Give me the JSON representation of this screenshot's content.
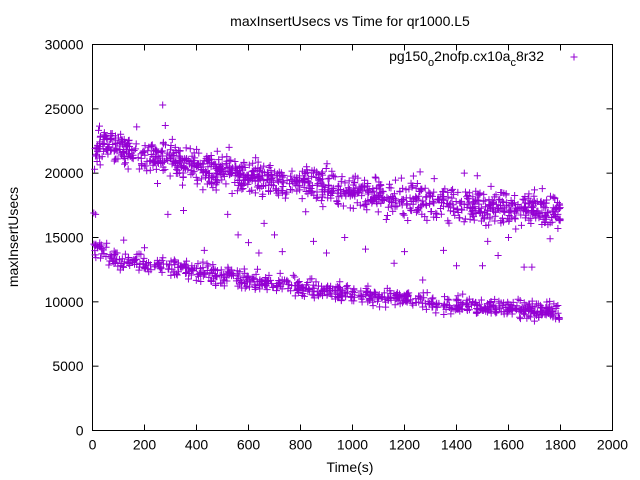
{
  "chart_data": {
    "type": "scatter",
    "title": "maxInsertUsecs vs Time for qr1000.L5",
    "xlabel": "Time(s)",
    "ylabel": "maxInsertUsecs",
    "xlim": [
      0,
      2000
    ],
    "ylim": [
      0,
      30000
    ],
    "x_ticks": [
      "0",
      "200",
      "400",
      "600",
      "800",
      "1000",
      "1200",
      "1400",
      "1600",
      "1800",
      "2000"
    ],
    "y_ticks": [
      "0",
      "5000",
      "10000",
      "15000",
      "20000",
      "25000",
      "30000"
    ],
    "grid": false,
    "legend_position": "top-right",
    "marker": "+",
    "color": "#9400d3",
    "series": [
      {
        "name": "pg150_o2nofp.cx10a_c8r32",
        "legend_main": "pg150",
        "legend_sub1": "o",
        "legend_mid": "2nofp.cx10a",
        "legend_sub2": "c",
        "legend_end": "8r32",
        "bands": [
          {
            "x": [
              5,
              40,
              100,
              200,
              300,
              400,
              500,
              600,
              700,
              800,
              900,
              1000,
              1100,
              1200,
              1300,
              1400,
              1500,
              1600,
              1700,
              1800
            ],
            "y": [
              14300,
              13800,
              13300,
              12900,
              12600,
              12300,
              12000,
              11700,
              11400,
              11100,
              10800,
              10600,
              10400,
              10200,
              10000,
              9800,
              9700,
              9600,
              9400,
              9100
            ]
          },
          {
            "x": [
              10,
              40,
              100,
              200,
              300,
              400,
              500,
              600,
              700,
              800,
              900,
              1000,
              1100,
              1200,
              1300,
              1400,
              1500,
              1600,
              1700,
              1800
            ],
            "y": [
              22000,
              22300,
              21800,
              21500,
              21000,
              20500,
              20200,
              19800,
              19500,
              19200,
              18900,
              18600,
              18300,
              18000,
              17800,
              17600,
              17400,
              17300,
              17200,
              17000
            ]
          }
        ],
        "outliers": [
          [
            5,
            16900
          ],
          [
            8,
            20300
          ],
          [
            12,
            16800
          ],
          [
            30,
            22800
          ],
          [
            170,
            23600
          ],
          [
            230,
            22200
          ],
          [
            250,
            19200
          ],
          [
            270,
            25300
          ],
          [
            280,
            23700
          ],
          [
            290,
            16800
          ],
          [
            350,
            17100
          ],
          [
            520,
            16800
          ],
          [
            560,
            15200
          ],
          [
            600,
            14600
          ],
          [
            660,
            16100
          ],
          [
            700,
            15200
          ],
          [
            730,
            13900
          ],
          [
            820,
            17000
          ],
          [
            850,
            14700
          ],
          [
            970,
            15000
          ],
          [
            1050,
            14100
          ],
          [
            1130,
            16400
          ],
          [
            1200,
            13900
          ],
          [
            1260,
            20100
          ],
          [
            1350,
            14000
          ],
          [
            1400,
            12800
          ],
          [
            1430,
            20000
          ],
          [
            1480,
            19800
          ],
          [
            1500,
            12800
          ],
          [
            1520,
            14700
          ],
          [
            1570,
            18500
          ],
          [
            1600,
            15000
          ],
          [
            1660,
            12700
          ],
          [
            1700,
            18700
          ],
          [
            1730,
            18800
          ],
          [
            1760,
            14900
          ],
          [
            1790,
            16800
          ],
          [
            1790,
            15700
          ],
          [
            120,
            14800
          ],
          [
            200,
            14200
          ],
          [
            430,
            14000
          ],
          [
            640,
            13800
          ],
          [
            900,
            13800
          ],
          [
            1160,
            13000
          ],
          [
            1270,
            11700
          ],
          [
            1560,
            13600
          ],
          [
            1690,
            12700
          ]
        ]
      }
    ]
  }
}
